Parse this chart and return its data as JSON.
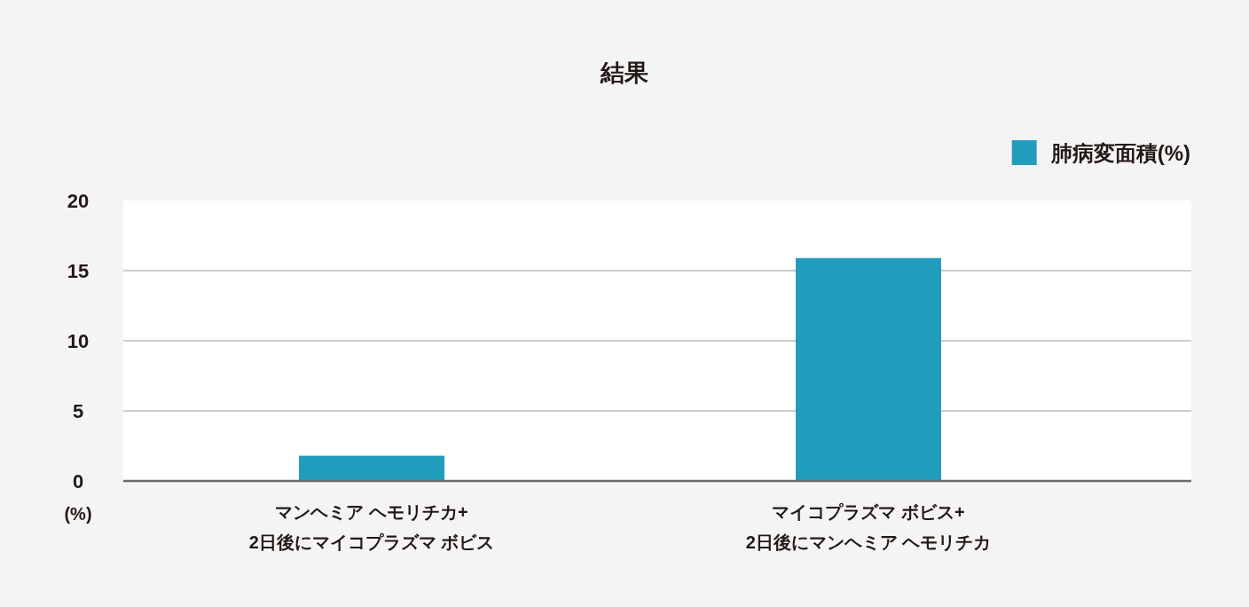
{
  "chart_data": {
    "type": "bar",
    "title": "結果",
    "ylabel": "(%)",
    "categories": [
      "マンヘミア ヘモリチカ+\n2日後にマイコプラズマ ボビス",
      "マイコプラズマ ボビス+\n2日後にマンヘミア ヘモリチカ"
    ],
    "series": [
      {
        "name": "肺病変面積(%)",
        "color": "#229cbc",
        "values": [
          1.8,
          15.9
        ]
      }
    ],
    "ylim": [
      0,
      20
    ],
    "yticks": [
      0,
      5,
      10,
      15,
      20
    ],
    "grid": "y",
    "legend": "top right"
  }
}
